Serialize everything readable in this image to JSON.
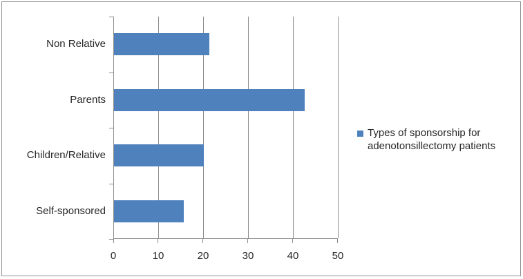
{
  "chart_data": {
    "type": "bar",
    "orientation": "horizontal",
    "title": "",
    "categories": [
      "Non Relative",
      "Parents",
      "Children/Relative",
      "Self-sponsored"
    ],
    "values": [
      21.3,
      42.5,
      20,
      15.5
    ],
    "series_name": "Types of sponsorship for adenotonsillectomy patients",
    "xlabel": "",
    "ylabel": "",
    "xlim": [
      0,
      50
    ],
    "x_ticks": [
      0,
      10,
      20,
      30,
      40,
      50
    ],
    "grid": true,
    "legend_position": "right",
    "bar_color": "#4F81BD",
    "gridline_color": "#8c8c8c",
    "axis_color": "#8c8c8c",
    "text_color": "#262626"
  },
  "legend": {
    "label": "Types of sponsorship for adenotonsillectomy patients",
    "swatch_color": "#4F81BD"
  }
}
